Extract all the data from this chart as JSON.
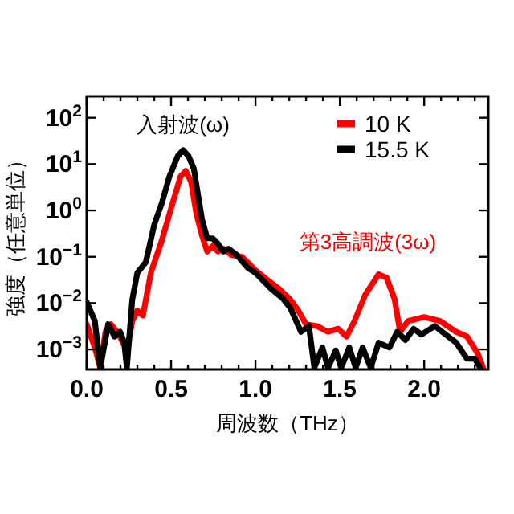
{
  "chart_data": {
    "type": "line",
    "xlabel": "周波数（THz）",
    "ylabel": "強度（任意単位）",
    "log": "y",
    "xlim": [
      0,
      2.38
    ],
    "ylim": [
      0.00037,
      290
    ],
    "xticks": [
      {
        "value": 0,
        "label": "0.0"
      },
      {
        "value": 0.1,
        "label": null
      },
      {
        "value": 0.2,
        "label": null
      },
      {
        "value": 0.3,
        "label": null
      },
      {
        "value": 0.4,
        "label": null
      },
      0.5,
      {
        "value": 0.6,
        "label": null
      },
      {
        "value": 0.7,
        "label": null
      },
      {
        "value": 0.8,
        "label": null
      },
      {
        "value": 0.9,
        "label": null
      },
      {
        "value": 1,
        "label": "1.0"
      },
      {
        "value": 1.1,
        "label": null
      },
      {
        "value": 1.2,
        "label": null
      },
      {
        "value": 1.3,
        "label": null
      },
      {
        "value": 1.4,
        "label": null
      },
      1.5,
      {
        "value": 1.6,
        "label": null
      },
      {
        "value": 1.7,
        "label": null
      },
      {
        "value": 1.8,
        "label": null
      },
      {
        "value": 1.9,
        "label": null
      },
      {
        "value": 2,
        "label": "2.0"
      },
      {
        "value": 2.1,
        "label": null
      },
      {
        "value": 2.2,
        "label": null
      },
      {
        "value": 2.3,
        "label": null
      }
    ],
    "yticks": [
      {
        "value": 0.001,
        "label": "10$^{−3}$"
      },
      {
        "value": 0.01,
        "label": "10$^{−2}$"
      },
      {
        "value": 0.1,
        "label": "10$^{−1}$"
      },
      {
        "value": 1,
        "label": "10$^{0}$"
      },
      {
        "value": 10,
        "label": "10$^{1}$"
      },
      {
        "value": 100,
        "label": "10$^{2}$"
      }
    ],
    "grid": false,
    "legend": "top right",
    "marker": "none",
    "line_style": "solid",
    "annotations": [
      "入射波(ω)",
      "第3高調波(3ω)"
    ],
    "series": [
      {
        "name": "10 K",
        "color": "#ff0000",
        "x": [
          0,
          0.048,
          0.08,
          0.111,
          0.143,
          0.19,
          0.238,
          0.27,
          0.3,
          0.333,
          0.38,
          0.444,
          0.508,
          0.556,
          0.587,
          0.619,
          0.65,
          0.683,
          0.714,
          0.746,
          0.778,
          0.81,
          0.857,
          0.92,
          1.0,
          1.079,
          1.143,
          1.206,
          1.254,
          1.3,
          1.365,
          1.43,
          1.49,
          1.54,
          1.587,
          1.65,
          1.73,
          1.778,
          1.825,
          1.857,
          1.905,
          2.0,
          2.095,
          2.19,
          2.254,
          2.317,
          2.349
        ],
        "values": [
          0.0035,
          0.0011,
          0.0004,
          0.0024,
          0.0035,
          0.0021,
          0.00095,
          0.0041,
          0.0069,
          0.0054,
          0.045,
          0.22,
          1.4,
          5.4,
          7.1,
          4.1,
          0.83,
          0.29,
          0.13,
          0.17,
          0.13,
          0.15,
          0.11,
          0.1,
          0.051,
          0.03,
          0.02,
          0.012,
          0.0069,
          0.0035,
          0.0032,
          0.0024,
          0.0028,
          0.0019,
          0.0041,
          0.015,
          0.042,
          0.035,
          0.012,
          0.0024,
          0.0041,
          0.005,
          0.0041,
          0.0024,
          0.0019,
          0.00083,
          0.0004
        ]
      },
      {
        "name": "15.5 K",
        "color": "#000000",
        "x": [
          0,
          0.048,
          0.08,
          0.127,
          0.165,
          0.197,
          0.222,
          0.238,
          0.27,
          0.3,
          0.35,
          0.4,
          0.444,
          0.49,
          0.54,
          0.571,
          0.603,
          0.635,
          0.683,
          0.714,
          0.746,
          0.778,
          0.81,
          0.84,
          0.889,
          0.952,
          1.0,
          1.048,
          1.095,
          1.159,
          1.206,
          1.27,
          1.317,
          1.349,
          1.397,
          1.43,
          1.476,
          1.508,
          1.556,
          1.594,
          1.635,
          1.683,
          1.73,
          1.794,
          1.84,
          1.889,
          1.937,
          1.984,
          2.063,
          2.127,
          2.19,
          2.254,
          2.3,
          2.333
        ],
        "values": [
          0.0105,
          0.0041,
          0.0004,
          0.0035,
          0.0019,
          0.0024,
          0.0014,
          0.0004,
          0.012,
          0.045,
          0.076,
          0.49,
          1.4,
          5.4,
          15,
          20,
          15,
          7.9,
          0.65,
          0.25,
          0.25,
          0.19,
          0.13,
          0.15,
          0.11,
          0.059,
          0.045,
          0.03,
          0.02,
          0.013,
          0.0079,
          0.0024,
          0.0032,
          0.0004,
          0.0011,
          0.0004,
          0.00095,
          0.0004,
          0.0011,
          0.0004,
          0.0011,
          0.0004,
          0.0014,
          0.0011,
          0.0024,
          0.0016,
          0.0028,
          0.0021,
          0.0032,
          0.0021,
          0.0014,
          0.00063,
          0.00063,
          0.0004
        ]
      }
    ]
  }
}
